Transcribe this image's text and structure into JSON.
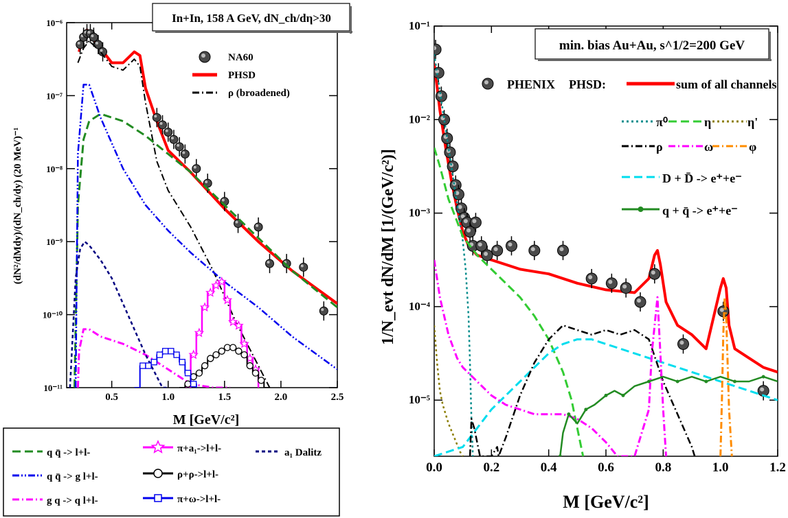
{
  "chart_data": [
    {
      "type": "line",
      "panel": "left",
      "title": "In+In, 158 A GeV, dN_ch/dη>30",
      "xlabel": "M  [GeV/c²]",
      "ylabel": "(dN²/dMdy)/(dN_ch/dy)  (20 MeV)⁻¹",
      "xlim": [
        0.1,
        2.5
      ],
      "ylim_log10": [
        -11,
        -6
      ],
      "y_scale": "log",
      "x_ticks": [
        0.5,
        1.0,
        1.5,
        2.0,
        2.5
      ],
      "x_tick_labels": [
        "0.5",
        "1.0",
        "1.5",
        "2.0",
        "2.5"
      ],
      "y_ticks": [
        -11,
        -10,
        -9,
        -8,
        -7,
        -6
      ],
      "y_tick_labels": [
        "10⁻¹¹",
        "10⁻¹⁰",
        "10⁻⁹",
        "10⁻⁸",
        "10⁻⁷",
        "10⁻⁶"
      ],
      "legend_top": [
        {
          "label": "NA60",
          "style": "marker",
          "color": "#333333"
        },
        {
          "label": "PHSD",
          "style": "solid",
          "color": "#ff0000"
        },
        {
          "label": "ρ (broadened)",
          "style": "dashdot",
          "color": "#000000"
        }
      ],
      "legend_bottom": [
        {
          "label": "q q̄ -> l+l-",
          "style": "dash",
          "color": "#228b22"
        },
        {
          "label": "q q̄ -> g l+l-",
          "style": "dashdotdot",
          "color": "#0000ee"
        },
        {
          "label": "g q -> q l+l-",
          "style": "dashdot",
          "color": "#ff00ff"
        },
        {
          "label": "π+a₁->l+l-",
          "style": "star",
          "color": "#ff00ff"
        },
        {
          "label": "ρ+ρ->l+l-",
          "style": "circle",
          "color": "#000000"
        },
        {
          "label": "π+ω->l+l-",
          "style": "square",
          "color": "#0000ee"
        },
        {
          "label": "a₁ Dalitz",
          "style": "shortdash",
          "color": "#000080"
        }
      ],
      "series": [
        {
          "name": "PHSD",
          "color": "#ff0000",
          "style": "solid",
          "width": 4,
          "x": [
            0.21,
            0.24,
            0.28,
            0.32,
            0.4,
            0.5,
            0.6,
            0.7,
            0.75,
            0.8,
            0.9,
            1.0,
            1.2,
            1.5,
            1.8,
            2.1,
            2.5
          ],
          "y": [
            -6.4,
            -6.2,
            -6.1,
            -6.2,
            -6.35,
            -6.55,
            -6.55,
            -6.4,
            -6.45,
            -6.9,
            -7.35,
            -7.75,
            -8.05,
            -8.55,
            -9.0,
            -9.4,
            -9.85
          ]
        },
        {
          "name": "NA60",
          "color": "#333333",
          "style": "marker",
          "x": [
            0.22,
            0.25,
            0.28,
            0.31,
            0.34,
            0.38,
            0.42,
            0.9,
            0.95,
            1.0,
            1.05,
            1.1,
            1.15,
            1.25,
            1.35,
            1.5,
            1.62,
            1.8,
            1.9,
            2.05,
            2.2,
            2.38
          ],
          "y": [
            -6.3,
            -6.2,
            -6.15,
            -6.15,
            -6.2,
            -6.3,
            -6.4,
            -7.3,
            -7.4,
            -7.5,
            -7.6,
            -7.7,
            -7.8,
            -8.0,
            -8.2,
            -8.45,
            -8.75,
            -8.8,
            -9.3,
            -9.3,
            -9.35,
            -9.95
          ]
        },
        {
          "name": "ρ (broadened)",
          "color": "#000000",
          "style": "dashdot",
          "width": 2,
          "x": [
            0.2,
            0.25,
            0.3,
            0.4,
            0.5,
            0.6,
            0.7,
            0.75,
            0.8,
            0.9,
            1.0,
            1.1,
            1.2,
            1.4,
            1.6,
            1.8,
            1.9
          ],
          "y": [
            -6.55,
            -6.35,
            -6.25,
            -6.4,
            -6.6,
            -6.65,
            -6.5,
            -6.6,
            -7.1,
            -7.9,
            -8.3,
            -8.55,
            -8.8,
            -9.4,
            -10.1,
            -10.7,
            -11.0
          ]
        },
        {
          "name": "q q̄ -> l+l-",
          "color": "#228b22",
          "style": "dash",
          "width": 3,
          "x": [
            0.17,
            0.2,
            0.25,
            0.3,
            0.4,
            0.5,
            0.6,
            0.8,
            1.0,
            1.2,
            1.5,
            1.8,
            2.1,
            2.5
          ],
          "y": [
            -11.0,
            -8.5,
            -7.6,
            -7.35,
            -7.25,
            -7.3,
            -7.35,
            -7.55,
            -7.8,
            -8.05,
            -8.5,
            -8.95,
            -9.4,
            -9.9
          ]
        },
        {
          "name": "q q̄ -> g l+l-",
          "color": "#0000ee",
          "style": "dashdotdot",
          "width": 2.5,
          "x": [
            0.18,
            0.2,
            0.25,
            0.3,
            0.4,
            0.5,
            0.6,
            0.8,
            1.0,
            1.2,
            1.5,
            1.8,
            2.1,
            2.5
          ],
          "y": [
            -11.0,
            -7.8,
            -6.85,
            -6.85,
            -7.3,
            -7.65,
            -8.0,
            -8.5,
            -8.85,
            -9.15,
            -9.55,
            -9.9,
            -10.3,
            -10.75
          ]
        },
        {
          "name": "g q -> q l+l-",
          "color": "#ff00ff",
          "style": "dashdot",
          "width": 3,
          "x": [
            0.2,
            0.21,
            0.25,
            0.3,
            0.4,
            0.6,
            0.8,
            1.0,
            1.2,
            1.4,
            1.55
          ],
          "y": [
            -11.0,
            -10.5,
            -10.2,
            -10.2,
            -10.3,
            -10.4,
            -10.55,
            -10.75,
            -10.95,
            -11.0,
            -11.0
          ]
        },
        {
          "name": "a₁ Dalitz",
          "color": "#000080",
          "style": "shortdash",
          "width": 2.5,
          "x": [
            0.13,
            0.18,
            0.22,
            0.26,
            0.3,
            0.4,
            0.5,
            0.6,
            0.7,
            0.8,
            0.9,
            0.95,
            1.0
          ],
          "y": [
            -11.0,
            -9.5,
            -9.1,
            -9.0,
            -9.05,
            -9.25,
            -9.5,
            -9.85,
            -10.2,
            -10.55,
            -10.85,
            -11.0,
            -11.0
          ]
        },
        {
          "name": "π+a₁->l+l-",
          "color": "#ff00ff",
          "style": "step-star",
          "width": 2.5,
          "x": [
            1.15,
            1.2,
            1.25,
            1.3,
            1.35,
            1.4,
            1.45,
            1.5,
            1.55,
            1.6,
            1.65,
            1.7,
            1.75,
            1.8
          ],
          "y": [
            -11.0,
            -10.55,
            -10.25,
            -9.9,
            -9.7,
            -9.6,
            -9.55,
            -9.8,
            -10.1,
            -10.15,
            -10.4,
            -10.6,
            -10.75,
            -11.0
          ]
        },
        {
          "name": "ρ+ρ->l+l-",
          "color": "#000000",
          "style": "step-circle",
          "width": 2,
          "x": [
            1.1,
            1.15,
            1.2,
            1.25,
            1.3,
            1.35,
            1.4,
            1.45,
            1.5,
            1.55,
            1.6,
            1.65,
            1.7,
            1.75,
            1.8,
            1.85,
            1.9
          ],
          "y": [
            -11.0,
            -10.95,
            -10.85,
            -10.8,
            -10.7,
            -10.6,
            -10.55,
            -10.5,
            -10.45,
            -10.45,
            -10.5,
            -10.55,
            -10.7,
            -10.8,
            -10.9,
            -11.0,
            -11.0
          ]
        },
        {
          "name": "π+ω->l+l-",
          "color": "#0000ee",
          "style": "step-square",
          "width": 2,
          "x": [
            0.7,
            0.75,
            0.8,
            0.85,
            0.9,
            0.95,
            1.0,
            1.05,
            1.1,
            1.15,
            1.2,
            1.25
          ],
          "y": [
            -11.0,
            -10.7,
            -10.7,
            -10.65,
            -10.55,
            -10.5,
            -10.5,
            -10.55,
            -10.65,
            -10.8,
            -10.95,
            -11.0
          ]
        }
      ]
    },
    {
      "type": "line",
      "panel": "right",
      "title": "min. bias Au+Au, s^1/2=200 GeV",
      "xlabel": "M  [GeV/c²]",
      "ylabel": "1/N_evt dN/dM  [1/(GeV/c²)]",
      "xlim": [
        0.0,
        1.2
      ],
      "ylim_log10": [
        -5.6,
        -1.0
      ],
      "y_scale": "log",
      "x_ticks": [
        0.0,
        0.2,
        0.4,
        0.6,
        0.8,
        1.0,
        1.2
      ],
      "x_tick_labels": [
        "0.0",
        "0.2",
        "0.4",
        "0.6",
        "0.8",
        "1.0",
        "1.2"
      ],
      "y_ticks": [
        -5,
        -4,
        -3,
        -2,
        -1
      ],
      "y_tick_labels": [
        "10⁻⁵",
        "10⁻⁴",
        "10⁻³",
        "10⁻²",
        "10⁻¹"
      ],
      "legend": [
        {
          "label": "PHENIX",
          "style": "marker",
          "color": "#333333"
        },
        {
          "label": "PHSD:",
          "style": "text",
          "color": "#000000"
        },
        {
          "label": "sum of all channels",
          "style": "solid",
          "color": "#ff0000"
        },
        {
          "label": "π⁰",
          "style": "dot",
          "color": "#008b8b"
        },
        {
          "label": "η",
          "style": "dash",
          "color": "#33cc33"
        },
        {
          "label": "η'",
          "style": "dot",
          "color": "#8b7d00"
        },
        {
          "label": "ρ",
          "style": "dashdot",
          "color": "#000000"
        },
        {
          "label": "ω",
          "style": "dashdot",
          "color": "#ff00ff"
        },
        {
          "label": "φ",
          "style": "dashdot",
          "color": "#ff8c00"
        },
        {
          "label": "D + D̄ -> e⁺+e⁻",
          "style": "dash",
          "color": "#00ddee"
        },
        {
          "label": "q + q̄ -> e⁺+e⁻",
          "style": "solid-marker",
          "color": "#228b22"
        }
      ],
      "series": [
        {
          "name": "sum of all channels",
          "color": "#ff0000",
          "style": "solid",
          "width": 4,
          "x": [
            0.0,
            0.01,
            0.02,
            0.04,
            0.06,
            0.08,
            0.1,
            0.12,
            0.15,
            0.2,
            0.3,
            0.4,
            0.5,
            0.6,
            0.7,
            0.75,
            0.77,
            0.78,
            0.79,
            0.81,
            0.85,
            0.9,
            0.95,
            1.0,
            1.01,
            1.02,
            1.03,
            1.05,
            1.1,
            1.15,
            1.2
          ],
          "y": [
            -1.4,
            -1.65,
            -1.9,
            -2.3,
            -2.65,
            -2.95,
            -3.2,
            -3.35,
            -3.45,
            -3.5,
            -3.6,
            -3.65,
            -3.75,
            -3.82,
            -3.85,
            -3.7,
            -3.45,
            -3.4,
            -3.55,
            -3.95,
            -4.2,
            -4.3,
            -4.45,
            -3.8,
            -3.7,
            -3.8,
            -4.2,
            -4.45,
            -4.55,
            -4.65,
            -4.7
          ]
        },
        {
          "name": "PHENIX",
          "color": "#333333",
          "style": "marker",
          "x": [
            0.005,
            0.015,
            0.025,
            0.035,
            0.045,
            0.055,
            0.065,
            0.075,
            0.085,
            0.095,
            0.105,
            0.115,
            0.125,
            0.135,
            0.145,
            0.165,
            0.185,
            0.22,
            0.27,
            0.35,
            0.45,
            0.55,
            0.62,
            0.67,
            0.72,
            0.77,
            0.87,
            1.01,
            1.15
          ],
          "y": [
            -1.25,
            -1.5,
            -1.75,
            -2.0,
            -2.2,
            -2.35,
            -2.5,
            -2.7,
            -2.8,
            -2.95,
            -3.05,
            -3.1,
            -3.2,
            -3.35,
            -3.1,
            -3.35,
            -3.45,
            -3.4,
            -3.35,
            -3.4,
            -3.4,
            -3.7,
            -3.75,
            -3.8,
            -3.95,
            -3.65,
            -4.4,
            -4.05,
            -4.9
          ]
        },
        {
          "name": "π⁰",
          "color": "#008b8b",
          "style": "dot",
          "width": 2.5,
          "x": [
            0.0,
            0.02,
            0.04,
            0.06,
            0.08,
            0.1,
            0.11,
            0.12,
            0.125,
            0.13,
            0.135
          ],
          "y": [
            -1.3,
            -1.7,
            -2.1,
            -2.5,
            -2.9,
            -3.3,
            -3.6,
            -4.1,
            -4.6,
            -5.2,
            -5.6
          ]
        },
        {
          "name": "η",
          "color": "#33cc33",
          "style": "dash",
          "width": 3,
          "x": [
            0.0,
            0.02,
            0.05,
            0.1,
            0.15,
            0.2,
            0.25,
            0.3,
            0.35,
            0.4,
            0.45,
            0.48,
            0.5,
            0.52
          ],
          "y": [
            -2.3,
            -2.5,
            -2.85,
            -3.25,
            -3.45,
            -3.6,
            -3.75,
            -3.9,
            -4.1,
            -4.35,
            -4.7,
            -5.0,
            -5.3,
            -5.6
          ]
        },
        {
          "name": "η'",
          "color": "#8b7d00",
          "style": "dot",
          "width": 2.5,
          "x": [
            0.0,
            0.01,
            0.02,
            0.03,
            0.05,
            0.07,
            0.09,
            0.1
          ],
          "y": [
            -4.2,
            -4.6,
            -4.9,
            -5.05,
            -5.25,
            -5.4,
            -5.55,
            -5.6
          ]
        },
        {
          "name": "D + D̄ -> e⁺+e⁻",
          "color": "#00ddee",
          "style": "dash",
          "width": 3,
          "x": [
            0.0,
            0.05,
            0.1,
            0.15,
            0.2,
            0.25,
            0.3,
            0.35,
            0.4,
            0.45,
            0.5,
            0.55,
            0.6,
            0.7,
            0.8,
            0.9,
            1.0,
            1.1,
            1.2
          ],
          "y": [
            -5.6,
            -5.55,
            -5.5,
            -5.3,
            -5.1,
            -4.95,
            -4.8,
            -4.65,
            -4.5,
            -4.4,
            -4.35,
            -4.35,
            -4.4,
            -4.5,
            -4.6,
            -4.7,
            -4.8,
            -4.9,
            -5.0
          ]
        },
        {
          "name": "ρ",
          "color": "#000000",
          "style": "dashdot",
          "width": 2.5,
          "x": [
            0.125,
            0.13,
            0.14,
            0.15,
            0.16,
            0.17,
            0.2,
            0.22,
            0.225,
            0.25,
            0.3,
            0.35,
            0.4,
            0.45,
            0.5,
            0.55,
            0.6,
            0.65,
            0.7,
            0.75,
            0.8,
            0.85,
            0.9,
            0.91
          ],
          "y": [
            -5.6,
            -5.2,
            -5.3,
            -5.45,
            -5.6,
            -5.6,
            -5.6,
            -5.5,
            -5.6,
            -5.4,
            -4.95,
            -4.6,
            -4.35,
            -4.2,
            -4.25,
            -4.3,
            -4.25,
            -4.3,
            -4.25,
            -4.35,
            -4.8,
            -5.15,
            -5.5,
            -5.6
          ]
        },
        {
          "name": "ω",
          "color": "#ff00ff",
          "style": "dashdot",
          "width": 3,
          "x": [
            0.0,
            0.02,
            0.05,
            0.08,
            0.1,
            0.15,
            0.2,
            0.25,
            0.3,
            0.35,
            0.4,
            0.45,
            0.5,
            0.55,
            0.6,
            0.64,
            0.7,
            0.75,
            0.76,
            0.78,
            0.79,
            0.8,
            0.81
          ],
          "y": [
            -3.5,
            -3.9,
            -4.3,
            -4.55,
            -4.65,
            -4.8,
            -4.95,
            -5.05,
            -5.1,
            -5.15,
            -5.15,
            -5.15,
            -5.2,
            -5.3,
            -5.45,
            -5.6,
            -5.6,
            -5.1,
            -4.5,
            -3.9,
            -4.5,
            -5.1,
            -5.6
          ]
        },
        {
          "name": "φ",
          "color": "#ff8c00",
          "style": "dashdot",
          "width": 3,
          "x": [
            1.0,
            1.005,
            1.01,
            1.015,
            1.02,
            1.025,
            1.03,
            1.04
          ],
          "y": [
            -5.6,
            -5.0,
            -4.3,
            -3.9,
            -4.1,
            -4.6,
            -5.1,
            -5.6
          ]
        },
        {
          "name": "q + q̄ -> e⁺+e⁻",
          "color": "#228b22",
          "style": "solid-marker",
          "width": 2.5,
          "x": [
            0.44,
            0.45,
            0.47,
            0.5,
            0.53,
            0.56,
            0.6,
            0.63,
            0.66,
            0.7,
            0.75,
            0.8,
            0.85,
            0.9,
            0.95,
            1.0,
            1.05,
            1.1,
            1.15,
            1.2
          ],
          "y": [
            -5.6,
            -5.35,
            -5.15,
            -5.25,
            -5.1,
            -5.05,
            -4.95,
            -4.9,
            -4.95,
            -4.85,
            -4.8,
            -4.75,
            -4.8,
            -4.75,
            -4.8,
            -4.75,
            -4.8,
            -4.8,
            -4.75,
            -4.8
          ]
        }
      ]
    }
  ]
}
